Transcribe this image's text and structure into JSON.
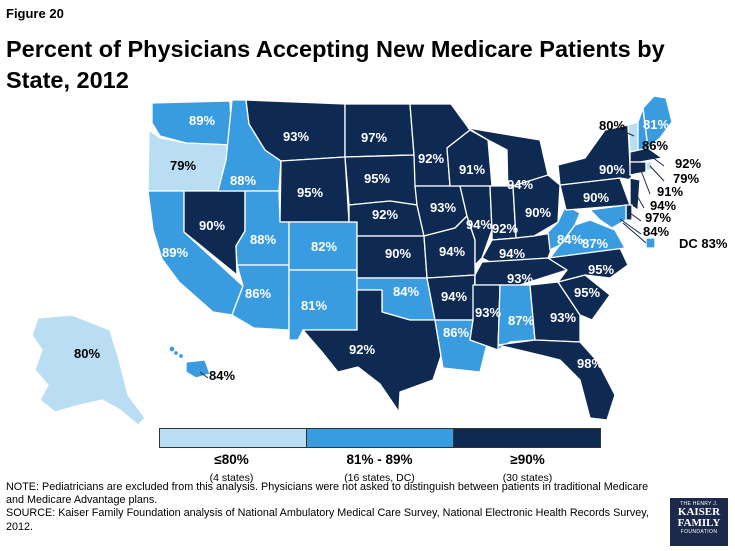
{
  "figure_label": "Figure 20",
  "title": "Percent of Physicians Accepting New Medicare Patients by State, 2012",
  "colors": {
    "low": "#b9ddf3",
    "mid": "#3a9ce0",
    "high": "#0f2a52",
    "border": "#ffffff",
    "outline": "#1b2a4a"
  },
  "legend": {
    "bins": [
      {
        "label": "≤80%",
        "sub": "(4 states)",
        "color": "#b9ddf3"
      },
      {
        "label": "81% - 89%",
        "sub": "(16 states, DC)",
        "color": "#3a9ce0"
      },
      {
        "label": "≥90%",
        "sub": "(30 states)",
        "color": "#0f2a52"
      }
    ]
  },
  "map_data": {
    "states": [
      {
        "state": "WA",
        "value": "89%"
      },
      {
        "state": "OR",
        "value": "79%"
      },
      {
        "state": "CA",
        "value": "89%"
      },
      {
        "state": "NV",
        "value": "90%"
      },
      {
        "state": "ID",
        "value": "88%"
      },
      {
        "state": "MT",
        "value": "93%"
      },
      {
        "state": "WY",
        "value": "95%"
      },
      {
        "state": "UT",
        "value": "88%"
      },
      {
        "state": "AZ",
        "value": "86%"
      },
      {
        "state": "CO",
        "value": "82%"
      },
      {
        "state": "NM",
        "value": "81%"
      },
      {
        "state": "ND",
        "value": "97%"
      },
      {
        "state": "SD",
        "value": "95%"
      },
      {
        "state": "NE",
        "value": "92%"
      },
      {
        "state": "KS",
        "value": "90%"
      },
      {
        "state": "OK",
        "value": "84%"
      },
      {
        "state": "TX",
        "value": "92%"
      },
      {
        "state": "MN",
        "value": "92%"
      },
      {
        "state": "IA",
        "value": "93%"
      },
      {
        "state": "MO",
        "value": "94%"
      },
      {
        "state": "AR",
        "value": "94%"
      },
      {
        "state": "LA",
        "value": "86%"
      },
      {
        "state": "WI",
        "value": "91%"
      },
      {
        "state": "IL",
        "value": "94%"
      },
      {
        "state": "MI",
        "value": "94%"
      },
      {
        "state": "IN",
        "value": "92%"
      },
      {
        "state": "OH",
        "value": "90%"
      },
      {
        "state": "KY",
        "value": "94%"
      },
      {
        "state": "TN",
        "value": "93%"
      },
      {
        "state": "MS",
        "value": "93%"
      },
      {
        "state": "AL",
        "value": "87%"
      },
      {
        "state": "GA",
        "value": "93%"
      },
      {
        "state": "FL",
        "value": "98%"
      },
      {
        "state": "SC",
        "value": "95%"
      },
      {
        "state": "NC",
        "value": "95%"
      },
      {
        "state": "VA",
        "value": "87%"
      },
      {
        "state": "WV",
        "value": "84%"
      },
      {
        "state": "PA",
        "value": "90%"
      },
      {
        "state": "NY",
        "value": "90%"
      },
      {
        "state": "VT",
        "value": "80%"
      },
      {
        "state": "NH",
        "value": "86%"
      },
      {
        "state": "ME",
        "value": "81%"
      },
      {
        "state": "MA",
        "value": "92%"
      },
      {
        "state": "RI",
        "value": "79%"
      },
      {
        "state": "CT",
        "value": "91%"
      },
      {
        "state": "NJ",
        "value": "94%"
      },
      {
        "state": "DE",
        "value": "97%"
      },
      {
        "state": "MD",
        "value": "84%"
      },
      {
        "state": "DC",
        "value": "83%"
      },
      {
        "state": "AK",
        "value": "80%"
      },
      {
        "state": "HI",
        "value": "84%"
      }
    ],
    "dc_label": "DC 83%"
  },
  "note": "NOTE: Pediatricians are excluded from this analysis.  Physicians were not asked to distinguish between patients in traditional Medicare and Medicare Advantage plans.",
  "source": "SOURCE: Kaiser Family Foundation analysis of National Ambulatory Medical Care Survey, National Electronic Health Records Survey, 2012.",
  "logo": {
    "line1": "THE HENRY J.",
    "line2": "KAISER",
    "line3": "FAMILY",
    "line4": "FOUNDATION"
  }
}
